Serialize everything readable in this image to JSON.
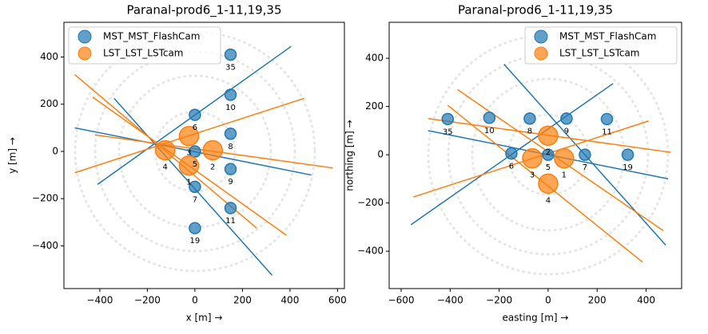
{
  "chart_data": [
    {
      "type": "scatter",
      "title": "Paranal-prod6_1-11,19,35",
      "xlabel": "x [m]  →",
      "ylabel": "y [m]  →",
      "xlim": [
        -551,
        629
      ],
      "ylim": [
        -581,
        547
      ],
      "xticks": [
        {
          "value": -400,
          "label": "−400"
        },
        {
          "value": -200,
          "label": "−200"
        },
        0,
        200,
        400,
        600
      ],
      "yticks": [
        {
          "value": -400,
          "label": "−400"
        },
        {
          "value": -200,
          "label": "−200"
        },
        0,
        200,
        400
      ],
      "legend": "upper left",
      "series": [
        {
          "name": "MST_MST_FlashCam",
          "color": "#1f77b4",
          "marker_size": 7,
          "x": [
            150,
            150,
            0,
            150,
            0,
            150,
            0,
            150,
            0
          ],
          "y": [
            410,
            240,
            155,
            75,
            0,
            -75,
            -150,
            -240,
            -325
          ],
          "labels": [
            "35",
            "10",
            "6",
            "8",
            "5",
            "9",
            "7",
            "11",
            "19"
          ]
        },
        {
          "name": "LST_LST_LSTcam",
          "color": "#ff7f0e",
          "marker_size": 12,
          "x": [
            -25,
            -25,
            -125,
            75
          ],
          "y": [
            65,
            -60,
            5,
            5
          ],
          "labels": [
            "3",
            "1",
            "4",
            "2"
          ]
        }
      ],
      "lines": [
        {
          "color": "#1f77b4",
          "x": [
            -505,
            490
          ],
          "y": [
            100,
            -100
          ]
        },
        {
          "color": "#1f77b4",
          "x": [
            -410,
            405
          ],
          "y": [
            -140,
            445
          ]
        },
        {
          "color": "#1f77b4",
          "x": [
            -340,
            325
          ],
          "y": [
            225,
            -525
          ]
        },
        {
          "color": "#ff7f0e",
          "x": [
            -505,
            260
          ],
          "y": [
            325,
            -325
          ]
        },
        {
          "color": "#ff7f0e",
          "x": [
            -430,
            385
          ],
          "y": [
            230,
            -355
          ]
        },
        {
          "color": "#ff7f0e",
          "x": [
            -420,
            580
          ],
          "y": [
            70,
            -70
          ]
        },
        {
          "color": "#ff7f0e",
          "x": [
            -505,
            460
          ],
          "y": [
            -90,
            225
          ]
        }
      ]
    },
    {
      "type": "scatter",
      "title": "Paranal-prod6_1-11,19,35",
      "xlabel": "easting [m]  →",
      "ylabel": "northing [m]  →",
      "xlim": [
        -649,
        545
      ],
      "ylim": [
        -555,
        549
      ],
      "xticks": [
        {
          "value": -600,
          "label": "−600"
        },
        {
          "value": -400,
          "label": "−400"
        },
        {
          "value": -200,
          "label": "−200"
        },
        0,
        200,
        400
      ],
      "yticks": [
        {
          "value": -400,
          "label": "−400"
        },
        {
          "value": -200,
          "label": "−200"
        },
        0,
        200,
        400
      ],
      "legend": "upper right",
      "series": [
        {
          "name": "MST_MST_FlashCam",
          "color": "#1f77b4",
          "marker_size": 7,
          "x": [
            -410,
            -240,
            -75,
            75,
            240,
            -150,
            0,
            150,
            325
          ],
          "y": [
            148,
            153,
            150,
            150,
            148,
            5,
            0,
            0,
            0
          ],
          "labels": [
            "35",
            "10",
            "8",
            "9",
            "11",
            "6",
            "5",
            "7",
            "19"
          ]
        },
        {
          "name": "LST_LST_LSTcam",
          "color": "#ff7f0e",
          "marker_size": 12,
          "x": [
            -65,
            65,
            0,
            0
          ],
          "y": [
            -15,
            -15,
            -120,
            79
          ],
          "labels": [
            "3",
            "1",
            "4",
            "2"
          ]
        }
      ],
      "lines": [
        {
          "color": "#1f77b4",
          "x": [
            -560,
            265
          ],
          "y": [
            -290,
            295
          ]
        },
        {
          "color": "#1f77b4",
          "x": [
            -490,
            490
          ],
          "y": [
            100,
            -100
          ]
        },
        {
          "color": "#1f77b4",
          "x": [
            -180,
            480
          ],
          "y": [
            375,
            -375
          ]
        },
        {
          "color": "#ff7f0e",
          "x": [
            -490,
            500
          ],
          "y": [
            150,
            10
          ]
        },
        {
          "color": "#ff7f0e",
          "x": [
            -550,
            410
          ],
          "y": [
            -175,
            140
          ]
        },
        {
          "color": "#ff7f0e",
          "x": [
            -370,
            470
          ],
          "y": [
            270,
            -315
          ]
        },
        {
          "color": "#ff7f0e",
          "x": [
            -410,
            385
          ],
          "y": [
            205,
            -445
          ]
        }
      ]
    }
  ]
}
